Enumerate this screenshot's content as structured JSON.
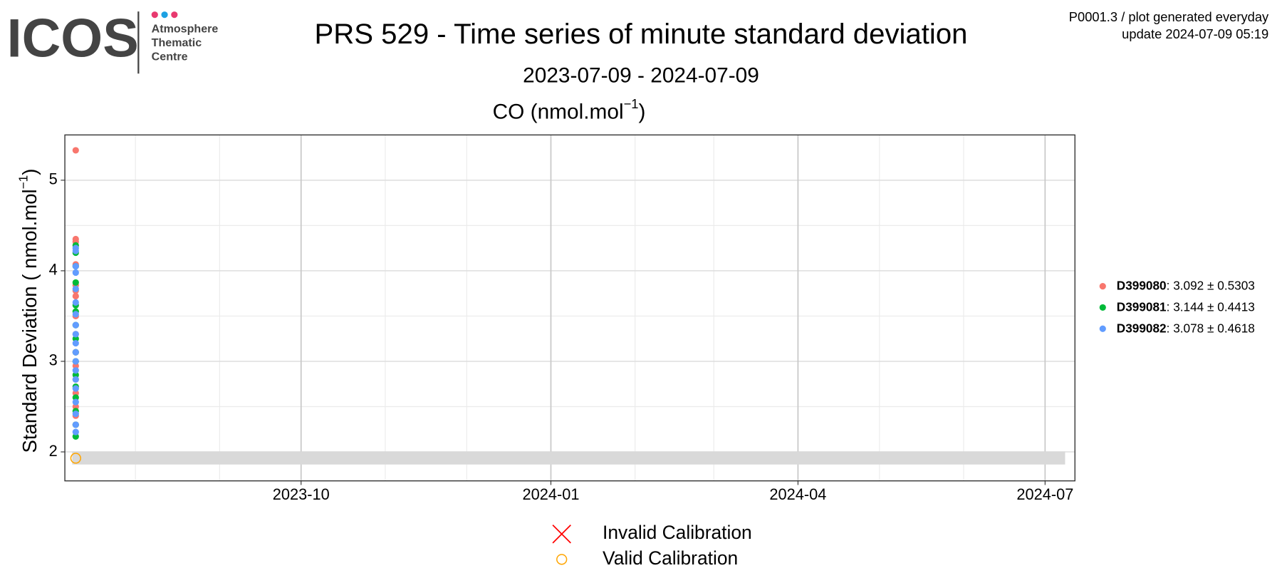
{
  "header": {
    "logo": "ICOS",
    "logo_lines": [
      "Atmosphere",
      "Thematic",
      "Centre"
    ],
    "info": [
      "P0001.3 / plot generated everyday",
      "update  2024-07-09 05:19"
    ]
  },
  "chart_data": {
    "type": "scatter",
    "title": "PRS 529 - Time series of minute standard deviation",
    "subtitle": "2023-07-09 - 2024-07-09",
    "panel_title": {
      "text": "CO (nmol.mol",
      "sup": "−1",
      "end": ")"
    },
    "y_label": {
      "text": "Standard Deviation ( nmol.mol",
      "sup": "−1",
      "end": ")"
    },
    "xlim": [
      "2023-07-06",
      "2024-07-12"
    ],
    "xticks": [
      {
        "value": "2023-10-01",
        "label": "2023-10"
      },
      {
        "value": "2024-01-01",
        "label": "2024-01"
      },
      {
        "value": "2024-04-01",
        "label": "2024-04"
      },
      {
        "value": "2024-07-01",
        "label": "2024-07"
      }
    ],
    "xminorticks": [
      "2023-08-01",
      "2023-09-01",
      "2023-11-01",
      "2023-12-01",
      "2024-02-01",
      "2024-03-01",
      "2024-05-01",
      "2024-06-01"
    ],
    "ylim": [
      1.68,
      5.5
    ],
    "yticks": [
      2,
      3,
      4,
      5
    ],
    "yminorticks": [
      2.5,
      3.5,
      4.5
    ],
    "grid": true,
    "series": [
      {
        "name": "D399080",
        "stats": ": 3.092 ± 0.5303",
        "color": "#f8766d",
        "marker": "circle",
        "x": [
          "2023-07-10",
          "2023-07-10",
          "2023-07-10",
          "2023-07-10",
          "2023-07-10",
          "2023-07-10",
          "2023-07-10",
          "2023-07-10",
          "2023-07-10",
          "2023-07-10",
          "2023-07-10",
          "2023-07-10",
          "2023-07-10",
          "2023-07-10",
          "2023-07-10",
          "2023-07-10"
        ],
        "values": [
          5.33,
          4.35,
          4.32,
          4.07,
          3.84,
          3.78,
          3.72,
          3.5,
          3.3,
          3.1,
          2.95,
          2.8,
          2.65,
          2.5,
          2.4,
          2.3
        ]
      },
      {
        "name": "D399081",
        "stats": ": 3.144 ± 0.4413",
        "color": "#00ba38",
        "marker": "circle",
        "x": [
          "2023-07-10",
          "2023-07-10",
          "2023-07-10",
          "2023-07-10",
          "2023-07-10",
          "2023-07-10",
          "2023-07-10",
          "2023-07-10",
          "2023-07-10",
          "2023-07-10",
          "2023-07-10",
          "2023-07-10",
          "2023-07-10",
          "2023-07-10",
          "2023-07-10",
          "2023-07-10"
        ],
        "values": [
          4.28,
          4.2,
          4.05,
          3.87,
          3.62,
          3.55,
          3.4,
          3.25,
          3.1,
          3.0,
          2.85,
          2.72,
          2.6,
          2.45,
          2.3,
          2.17
        ]
      },
      {
        "name": "D399082",
        "stats": ": 3.078 ± 0.4618",
        "color": "#619cff",
        "marker": "circle",
        "x": [
          "2023-07-10",
          "2023-07-10",
          "2023-07-10",
          "2023-07-10",
          "2023-07-10",
          "2023-07-10",
          "2023-07-10",
          "2023-07-10",
          "2023-07-10",
          "2023-07-10",
          "2023-07-10",
          "2023-07-10",
          "2023-07-10",
          "2023-07-10",
          "2023-07-10",
          "2023-07-10",
          "2023-07-10",
          "2023-07-10",
          "2023-07-10"
        ],
        "values": [
          4.25,
          4.22,
          4.05,
          3.98,
          3.8,
          3.65,
          3.52,
          3.4,
          3.3,
          3.2,
          3.1,
          3.0,
          2.9,
          2.8,
          2.7,
          2.55,
          2.42,
          2.3,
          2.22
        ]
      },
      {
        "name": "Invalid Calibration",
        "color": "#ff0000",
        "marker": "x",
        "x": [],
        "values": []
      },
      {
        "name": "Valid Calibration",
        "color": "#ffa500",
        "marker": "open-circle",
        "x": [
          "2023-07-10"
        ],
        "values": [
          1.93
        ]
      }
    ]
  }
}
